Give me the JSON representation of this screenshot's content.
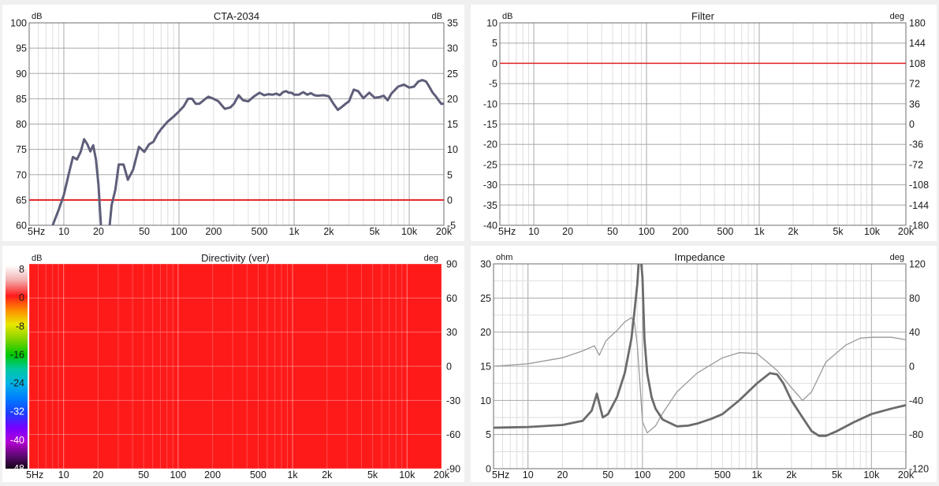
{
  "colors": {
    "background": "#f0f0f0",
    "plot_bg": "#ffffff",
    "major_grid": "#a8a8a8",
    "minor_grid": "#dedede",
    "trace": "#5e5e7a",
    "zero_line": "#e32222",
    "impedance_mag": "#6b6b6b",
    "impedance_phase": "#9a9a9a",
    "directivity_fill": "#ff1a1a"
  },
  "chart_data": [
    {
      "id": "cta",
      "type": "line",
      "title": "CTA-2034",
      "left_unit": "dB",
      "right_unit": "dB",
      "xscale": "log",
      "xlim": [
        5,
        20000
      ],
      "ylim": [
        60,
        100
      ],
      "y2lim": [
        -5,
        35
      ],
      "grid": true,
      "x_ticks": [
        "5Hz",
        "10",
        "20",
        "50",
        "100",
        "200",
        "500",
        "1k",
        "2k",
        "5k",
        "10k",
        "20k"
      ],
      "y_ticks": [
        "100",
        "95",
        "90",
        "85",
        "80",
        "75",
        "70",
        "65",
        "60"
      ],
      "y2_ticks": [
        "35",
        "30",
        "25",
        "20",
        "15",
        "10",
        "5",
        "0",
        "-5"
      ],
      "ref_line": {
        "name": "0 dB",
        "axis": "right",
        "value": 0
      },
      "series": [
        {
          "name": "",
          "segments": [
            {
              "x": [
                8,
                9,
                10,
                11,
                12,
                13,
                14,
                15,
                16,
                17,
                18,
                19,
                20,
                21,
                22,
                23,
                24
              ],
              "y": [
                60,
                63,
                66,
                70,
                73.5,
                73,
                74.5,
                77,
                76,
                74.6,
                75.8,
                73,
                68,
                60,
                55,
                49,
                40
              ]
            },
            {
              "x": [
                25,
                26,
                28,
                30,
                33,
                36,
                40,
                45,
                50,
                55,
                60,
                65,
                70,
                80,
                90,
                100,
                110,
                120,
                130,
                140,
                150,
                160,
                170,
                180,
                200,
                220,
                250,
                280,
                300,
                330,
                360,
                400,
                450,
                500,
                550,
                600,
                650,
                700,
                750,
                800,
                850,
                900,
                950,
                1000,
                1100,
                1200,
                1300,
                1400,
                1500,
                1600,
                1800,
                2000,
                2200,
                2400,
                2600,
                2800,
                3000,
                3300,
                3600,
                4000,
                4500,
                5000,
                5500,
                6000,
                6500,
                7000,
                8000,
                9000,
                10000,
                11000,
                12000,
                13000,
                14000,
                15000,
                16000,
                17000,
                18000,
                19000,
                20000
              ],
              "y": [
                60,
                64,
                67,
                72,
                72,
                69,
                71,
                75.5,
                74.5,
                76,
                76.5,
                78,
                79,
                80.5,
                81.5,
                82.5,
                83.5,
                85,
                85,
                84,
                84,
                84.5,
                85,
                85.4,
                85,
                84.5,
                83,
                83.3,
                84,
                85.7,
                84.7,
                84.5,
                85.5,
                86.2,
                85.7,
                85.9,
                85.8,
                86,
                85.7,
                86.3,
                86.5,
                86.2,
                86.2,
                85.8,
                85.8,
                86.3,
                85.8,
                86.1,
                85.7,
                85.6,
                85.7,
                85.5,
                84,
                82.8,
                83.4,
                84,
                84.5,
                86.8,
                86.5,
                85.1,
                86.2,
                85.2,
                85.3,
                85.6,
                84.7,
                86,
                87.4,
                87.8,
                87.2,
                87.4,
                88.4,
                88.7,
                88.4,
                87.3,
                86.2,
                85.5,
                84.7,
                84,
                84
              ]
            }
          ]
        }
      ]
    },
    {
      "id": "filter",
      "type": "line",
      "title": "Filter",
      "left_unit": "dB",
      "right_unit": "deg",
      "xscale": "log",
      "xlim": [
        5,
        20000
      ],
      "ylim": [
        -40,
        10
      ],
      "y2lim": [
        -180,
        180
      ],
      "grid": true,
      "x_ticks": [
        "5Hz",
        "10",
        "20",
        "50",
        "100",
        "200",
        "500",
        "1k",
        "2k",
        "5k",
        "10k",
        "20k"
      ],
      "y_ticks": [
        "10",
        "5",
        "0",
        "-5",
        "-10",
        "-15",
        "-20",
        "-25",
        "-30",
        "-35",
        "-40"
      ],
      "y2_ticks": [
        "180",
        "144",
        "108",
        "72",
        "36",
        "0",
        "-36",
        "-72",
        "-108",
        "-144",
        "-180"
      ],
      "ref_line": {
        "name": "0 dB",
        "axis": "left",
        "value": 0
      },
      "series": []
    },
    {
      "id": "directivity",
      "type": "heatmap",
      "title": "Directivity (ver)",
      "left_unit": "dB",
      "right_unit": "deg",
      "xscale": "log",
      "xlim": [
        5,
        20000
      ],
      "y2lim": [
        -90,
        90
      ],
      "grid": true,
      "x_ticks": [
        "5Hz",
        "10",
        "20",
        "50",
        "100",
        "200",
        "500",
        "1k",
        "2k",
        "5k",
        "10k",
        "20k"
      ],
      "y2_ticks": [
        "90",
        "60",
        "30",
        "0",
        "-30",
        "-60",
        "-90"
      ],
      "colorbar_ticks": [
        "8",
        "0",
        "-8",
        "-16",
        "-24",
        "-32",
        "-40",
        "-48"
      ],
      "colorbar_range": [
        -48,
        8
      ],
      "fill_level_db": 0
    },
    {
      "id": "impedance",
      "type": "line",
      "title": "Impedance",
      "left_unit": "ohm",
      "right_unit": "deg",
      "xscale": "log",
      "xlim": [
        5,
        20000
      ],
      "ylim": [
        0,
        30
      ],
      "y2lim": [
        -120,
        120
      ],
      "grid": true,
      "x_ticks": [
        "5Hz",
        "10",
        "20",
        "50",
        "100",
        "200",
        "500",
        "1k",
        "2k",
        "5k",
        "10k",
        "20k"
      ],
      "y_ticks": [
        "30",
        "25",
        "20",
        "15",
        "10",
        "5",
        "0"
      ],
      "y2_ticks": [
        "120",
        "80",
        "40",
        "0",
        "-40",
        "-80",
        "-120"
      ],
      "series": [
        {
          "name": "",
          "role": "magnitude",
          "axis": "left",
          "x": [
            5,
            10,
            20,
            30,
            36,
            40,
            42,
            45,
            50,
            60,
            70,
            80,
            85,
            90,
            93,
            95,
            97,
            100,
            104,
            110,
            120,
            130,
            150,
            200,
            250,
            300,
            400,
            500,
            700,
            1000,
            1300,
            1500,
            1700,
            2000,
            2500,
            3000,
            3500,
            4000,
            5000,
            7000,
            10000,
            15000,
            20000
          ],
          "y": [
            6,
            6.1,
            6.4,
            7,
            8.5,
            11,
            9.5,
            7.5,
            8,
            10.5,
            14,
            19,
            23,
            27,
            32,
            35,
            33,
            28,
            19,
            14,
            10.5,
            8.8,
            7.2,
            6.2,
            6.3,
            6.6,
            7.3,
            8,
            10,
            12.5,
            14,
            13.8,
            12.5,
            10,
            7.5,
            5.5,
            4.8,
            4.8,
            5.5,
            6.8,
            8,
            8.8,
            9.3
          ]
        },
        {
          "name": "",
          "role": "phase",
          "axis": "right",
          "x": [
            5,
            10,
            20,
            30,
            38,
            42,
            48,
            60,
            70,
            80,
            85,
            90,
            95,
            100,
            110,
            130,
            150,
            200,
            300,
            500,
            700,
            1000,
            1500,
            2000,
            2500,
            3000,
            4000,
            6000,
            8000,
            10000,
            15000,
            20000
          ],
          "y": [
            0,
            3,
            10,
            18,
            24,
            13,
            30,
            42,
            52,
            57,
            52,
            25,
            -20,
            -65,
            -78,
            -70,
            -55,
            -30,
            -8,
            10,
            16,
            15,
            -5,
            -25,
            -40,
            -30,
            5,
            25,
            33,
            34,
            34,
            31
          ]
        }
      ]
    }
  ]
}
